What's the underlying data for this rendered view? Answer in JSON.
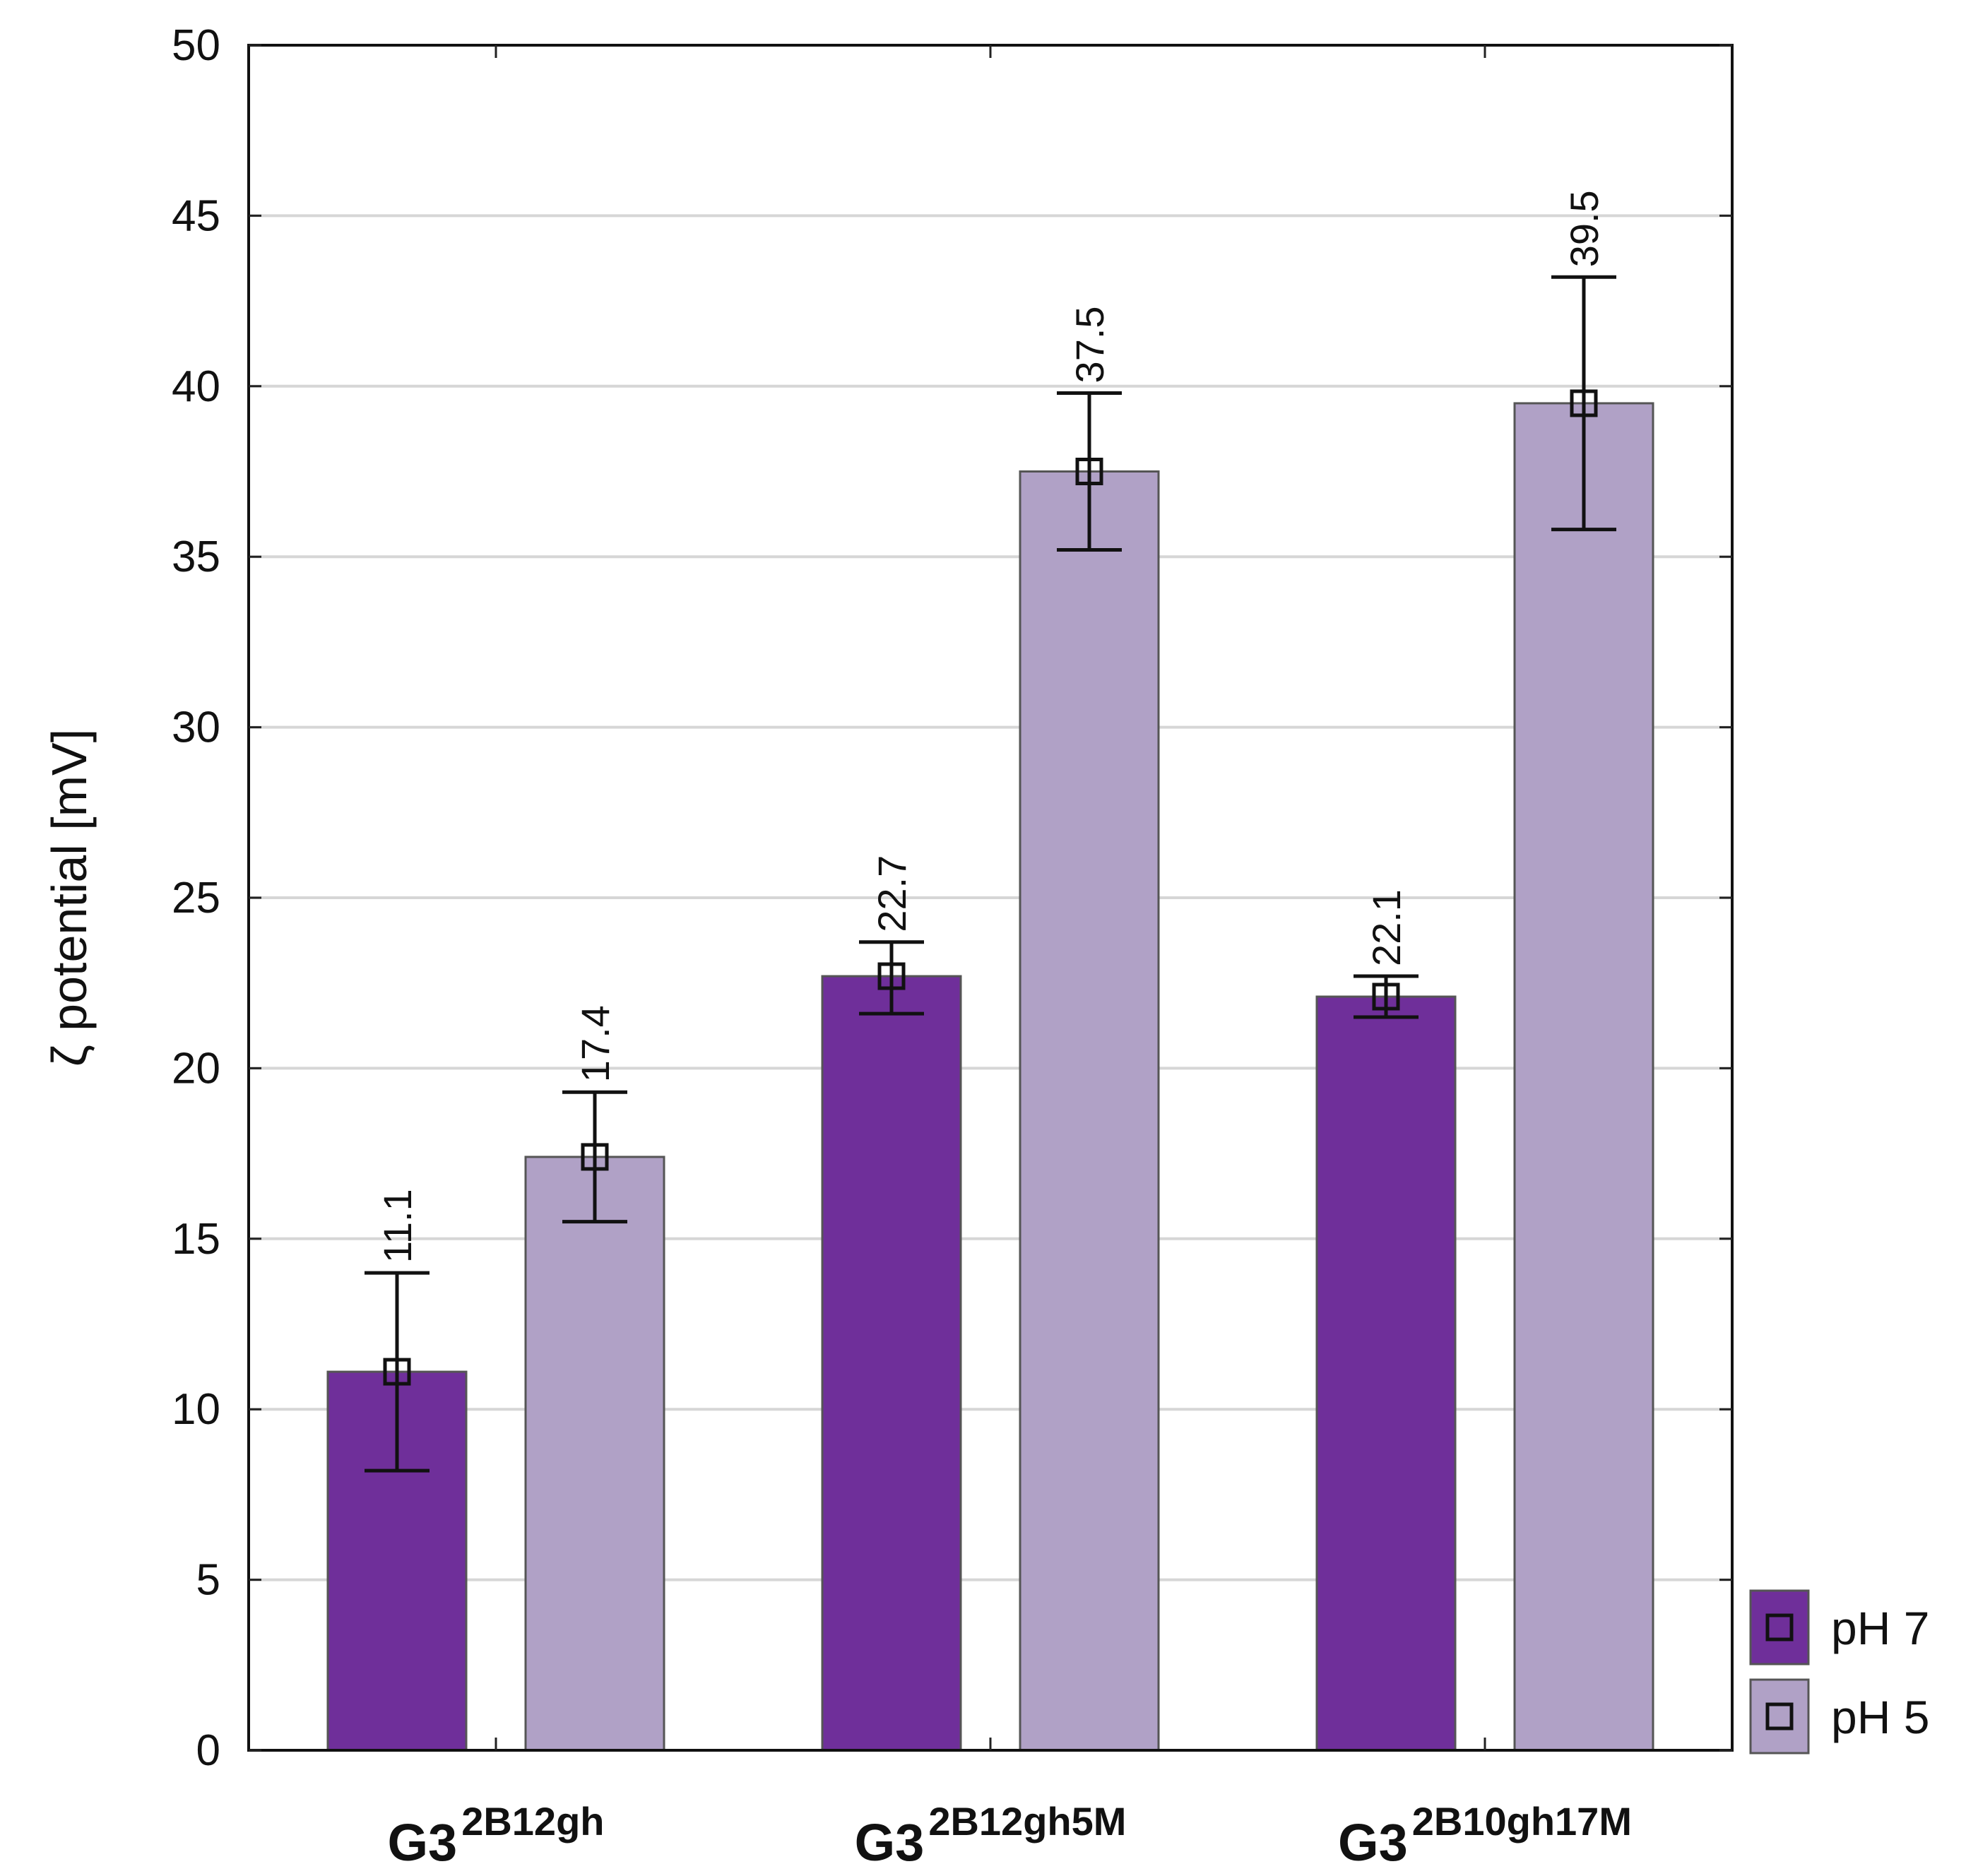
{
  "chart_data": {
    "type": "bar",
    "title": "",
    "xlabel": "",
    "ylabel": "ζ potential [mV]",
    "ylim": [
      0,
      50
    ],
    "yticks": [
      0,
      5,
      10,
      15,
      20,
      25,
      30,
      35,
      40,
      45,
      50
    ],
    "grid": true,
    "legend_position": "bottom-right outside",
    "categories": [
      {
        "base": "G3",
        "sup": "2B12gh"
      },
      {
        "base": "G3",
        "sup": "2B12gh5M"
      },
      {
        "base": "G3",
        "sup": "2B10gh17M"
      }
    ],
    "series": [
      {
        "name": "pH 7",
        "color": "#6f2f9a",
        "values": [
          11.1,
          22.7,
          22.1
        ],
        "labels": [
          "11.1",
          "22.7",
          "22.1"
        ],
        "err_low": [
          8.2,
          21.6,
          21.5
        ],
        "err_high": [
          14.0,
          23.7,
          22.7
        ]
      },
      {
        "name": "pH 5",
        "color": "#b0a1c6",
        "values": [
          17.4,
          37.5,
          39.5
        ],
        "labels": [
          "17.4",
          "37.5",
          "39.5"
        ],
        "err_low": [
          15.5,
          35.2,
          35.8
        ],
        "err_high": [
          19.3,
          39.8,
          43.2
        ]
      }
    ]
  }
}
